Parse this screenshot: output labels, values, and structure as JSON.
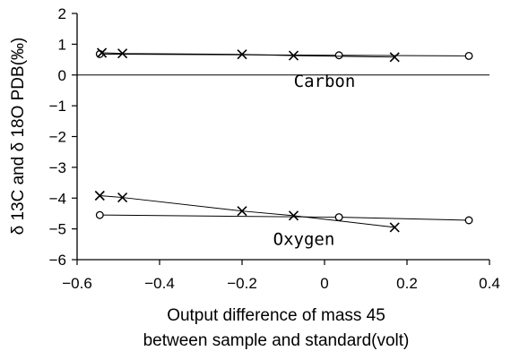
{
  "chart_data": {
    "type": "scatter",
    "title": "",
    "xlabel_lines": [
      "Output difference of mass 45",
      "between sample and standard(volt)"
    ],
    "ylabel": "δ 13C and δ 18O PDB(‰)",
    "xlim": [
      -0.6,
      0.4
    ],
    "ylim": [
      -6,
      2
    ],
    "x_ticks": [
      -0.6,
      -0.4,
      -0.2,
      0,
      0.2,
      0.4
    ],
    "x_tick_labels": [
      "−0.6",
      "−0.4",
      "−0.2",
      "0",
      "0.2",
      "0.4"
    ],
    "y_ticks": [
      2,
      1,
      0,
      -1,
      -2,
      -3,
      -4,
      -5,
      -6
    ],
    "y_tick_labels": [
      "2",
      "1",
      "0",
      "−1",
      "−2",
      "−3",
      "−4",
      "−5",
      "−6"
    ],
    "grid": false,
    "series": [
      {
        "group": "Carbon",
        "marker": "circle",
        "x": [
          -0.545,
          0.035,
          0.35
        ],
        "y": [
          0.68,
          0.64,
          0.62
        ]
      },
      {
        "group": "Carbon",
        "marker": "x",
        "x": [
          -0.54,
          -0.49,
          -0.2,
          -0.075,
          0.17
        ],
        "y": [
          0.72,
          0.7,
          0.67,
          0.63,
          0.58
        ]
      },
      {
        "group": "Oxygen",
        "marker": "circle",
        "x": [
          -0.545,
          0.035,
          0.35
        ],
        "y": [
          -4.55,
          -4.62,
          -4.72
        ]
      },
      {
        "group": "Oxygen",
        "marker": "x",
        "x": [
          -0.545,
          -0.49,
          -0.2,
          -0.075,
          0.17
        ],
        "y": [
          -3.92,
          -3.98,
          -4.42,
          -4.57,
          -4.95
        ]
      }
    ],
    "annotations": [
      {
        "text": "Carbon",
        "x": 0.0,
        "y": -0.38
      },
      {
        "text": "Oxygen",
        "x": -0.05,
        "y": -5.52
      }
    ]
  }
}
